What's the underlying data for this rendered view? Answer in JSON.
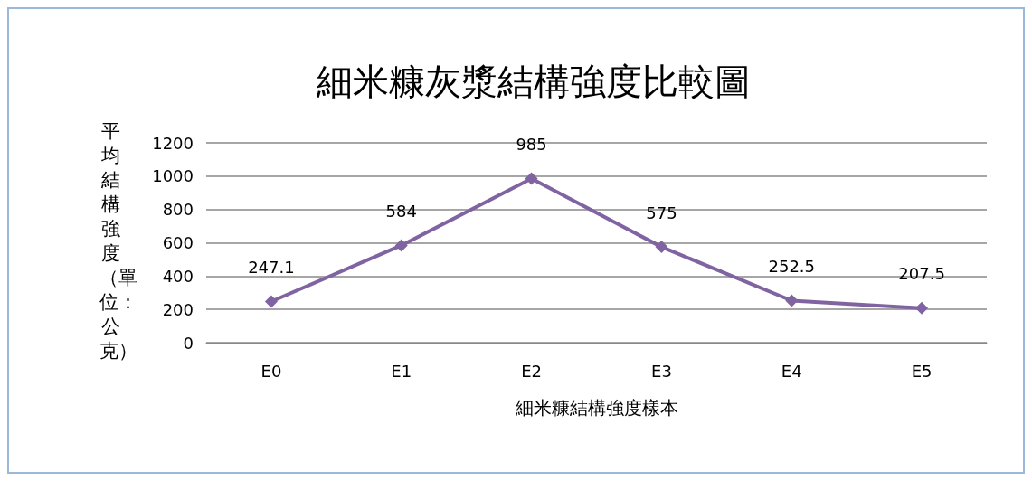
{
  "chart_data": {
    "type": "line",
    "title": "細米糠灰漿結構強度比較圖",
    "xlabel": "細米糠結構強度樣本",
    "ylabel": "平均結構強度（單位：公克）",
    "categories": [
      "E0",
      "E1",
      "E2",
      "E3",
      "E4",
      "E5"
    ],
    "series": [
      {
        "color": "#8064a2",
        "values": [
          247.1,
          584,
          985,
          575,
          252.5,
          207.5
        ]
      }
    ],
    "ylim": [
      0,
      1200
    ],
    "yticks": [
      0,
      200,
      400,
      600,
      800,
      1000,
      1200
    ],
    "grid": "y",
    "marker": "diamond",
    "line_style": "solid",
    "data_labels": true
  }
}
